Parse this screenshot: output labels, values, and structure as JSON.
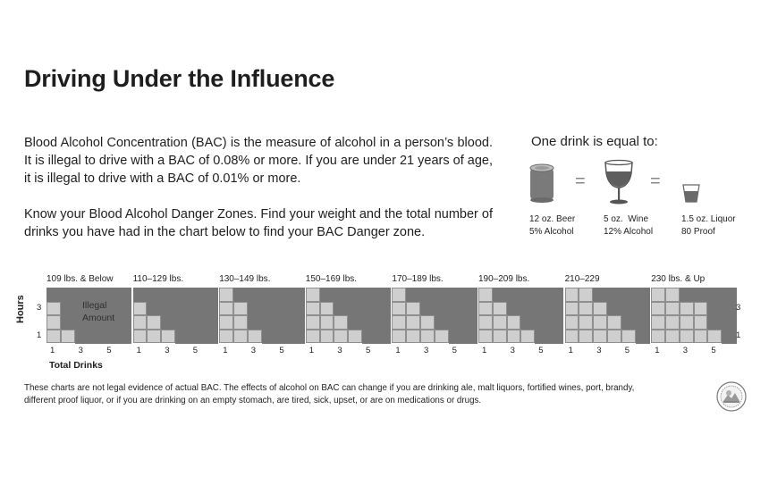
{
  "title": "Driving Under the Influence",
  "paragraph1": "Blood Alcohol Concentration (BAC) is the measure of alcohol in a person’s blood. It is illegal to drive with a BAC of 0.08% or more. If you are under 21 years of age, it is illegal to drive with a BAC of 0.01% or more.",
  "paragraph2": "Know your Blood Alcohol Danger Zones. Find your weight and the total number of drinks you have had in the chart below to find your BAC Danger zone.",
  "one_drink": {
    "heading": "One drink is equal to:",
    "items": [
      {
        "icon": "beer-can-icon",
        "line1": "12 oz. Beer",
        "line2": "5% Alcohol"
      },
      {
        "icon": "wine-glass-icon",
        "line1": "5 oz.  Wine",
        "line2": "12% Alcohol"
      },
      {
        "icon": "shot-glass-icon",
        "line1": "1.5 oz. Liquor",
        "line2": "80 Proof"
      }
    ],
    "equals": "="
  },
  "chart": {
    "y_axis_label": "Hours",
    "x_axis_label": "Total Drinks",
    "illegal_line1": "Illegal",
    "illegal_line2": "Amount",
    "x_ticks": [
      "1",
      "3",
      "5"
    ],
    "y_ticks": [
      "3",
      "1"
    ],
    "colors": {
      "legal": "#cfcfcf",
      "illegal": "#767676",
      "grid": "#8f8f8f"
    },
    "charts": [
      {
        "label": "109 lbs. & Below",
        "safe_drinks_by_hour": [
          0,
          1,
          1,
          2
        ]
      },
      {
        "label": "110–129 lbs.",
        "safe_drinks_by_hour": [
          0,
          1,
          2,
          3
        ]
      },
      {
        "label": "130–149 lbs.",
        "safe_drinks_by_hour": [
          1,
          2,
          2,
          3
        ]
      },
      {
        "label": "150–169 lbs.",
        "safe_drinks_by_hour": [
          1,
          2,
          3,
          4
        ]
      },
      {
        "label": "170–189 lbs.",
        "safe_drinks_by_hour": [
          1,
          2,
          3,
          4
        ]
      },
      {
        "label": "190–209 lbs.",
        "safe_drinks_by_hour": [
          1,
          2,
          3,
          4
        ]
      },
      {
        "label": "210–229",
        "safe_drinks_by_hour": [
          2,
          3,
          4,
          5
        ]
      },
      {
        "label": "230 lbs. & Up",
        "safe_drinks_by_hour": [
          2,
          4,
          4,
          5
        ]
      }
    ]
  },
  "footnote": "These charts are not legal evidence of actual BAC. The effects of alcohol on BAC can change if you are drinking ale, malt liquors, fortified wines, port, brandy, different proof liquor, or if you are drinking on an empty stomach, are tired, sick, upset, or are on medications or drugs."
}
